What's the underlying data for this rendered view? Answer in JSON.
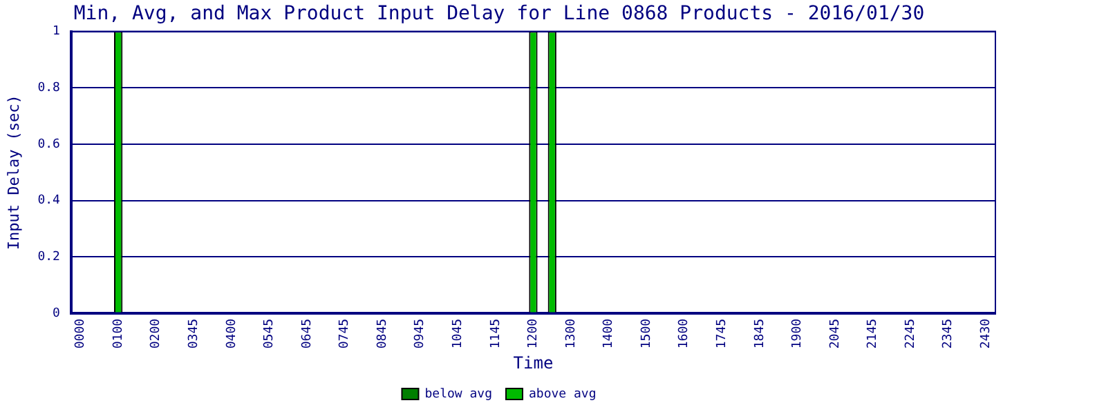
{
  "chart_data": {
    "type": "bar",
    "title": "Min, Avg, and Max Product Input Delay for Line 0868 Products - 2016/01/30",
    "xlabel": "Time",
    "ylabel": "Input Delay (sec)",
    "categories": [
      "0000",
      null,
      "0100",
      null,
      "0200",
      null,
      "0345",
      null,
      "0400",
      null,
      "0545",
      null,
      "0645",
      null,
      "0745",
      null,
      "0845",
      null,
      "0945",
      null,
      "1045",
      null,
      "1145",
      null,
      "1200",
      null,
      "1300",
      null,
      "1400",
      null,
      "1500",
      null,
      "1600",
      null,
      "1745",
      null,
      "1845",
      null,
      "1900",
      null,
      "2045",
      null,
      "2145",
      null,
      "2245",
      null,
      "2345",
      null,
      "2430"
    ],
    "series": [
      {
        "name": "below avg",
        "color": "#008000",
        "values": [
          null,
          null,
          null,
          null,
          null,
          null,
          null,
          null,
          null,
          null,
          null,
          null,
          null,
          null,
          null,
          null,
          null,
          null,
          null,
          null,
          null,
          null,
          null,
          null,
          null,
          null,
          null,
          null,
          null,
          null,
          null,
          null,
          null,
          null,
          null,
          null,
          null,
          null,
          null,
          null,
          null,
          null,
          null,
          null,
          null,
          null,
          null,
          null,
          null
        ]
      },
      {
        "name": "above avg",
        "color": "#00bb00",
        "values": [
          null,
          null,
          1,
          null,
          null,
          null,
          null,
          null,
          null,
          null,
          null,
          null,
          null,
          null,
          null,
          null,
          null,
          null,
          null,
          null,
          null,
          null,
          null,
          null,
          1,
          1,
          null,
          null,
          null,
          null,
          null,
          null,
          null,
          null,
          null,
          null,
          null,
          null,
          null,
          null,
          null,
          null,
          null,
          null,
          null,
          null,
          null,
          null,
          null
        ]
      }
    ],
    "stacked": true,
    "ylim": [
      0,
      1
    ],
    "yticks": [
      0,
      0.2,
      0.4,
      0.6,
      0.8,
      1
    ],
    "grid": "y",
    "legend": "bottom"
  }
}
